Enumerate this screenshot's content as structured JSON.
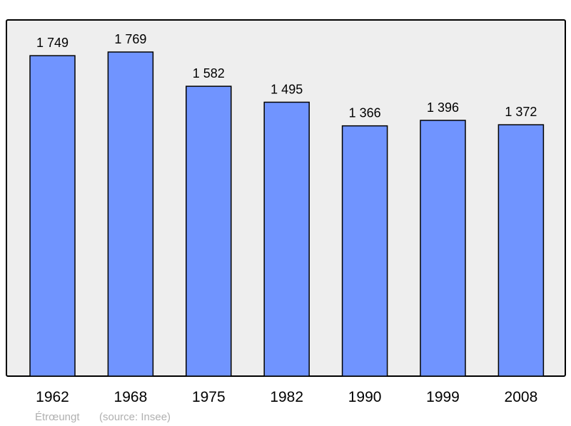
{
  "chart_data": {
    "type": "bar",
    "categories": [
      "1962",
      "1968",
      "1975",
      "1982",
      "1990",
      "1999",
      "2008"
    ],
    "values": [
      1749,
      1769,
      1582,
      1495,
      1366,
      1396,
      1372
    ],
    "value_labels": [
      "1 749",
      "1 769",
      "1 582",
      "1 495",
      "1 366",
      "1 396",
      "1 372"
    ],
    "title": "",
    "xlabel": "",
    "ylabel": "",
    "ylim": [
      0,
      1944
    ],
    "grid": false,
    "legend": "none",
    "footer_place": "Étrœungt",
    "footer_source": "(source: Insee)",
    "colors": {
      "bar": "#7094ff",
      "background": "#eeeeee",
      "frame": "#000000",
      "footer": "#b0b0b0"
    }
  }
}
